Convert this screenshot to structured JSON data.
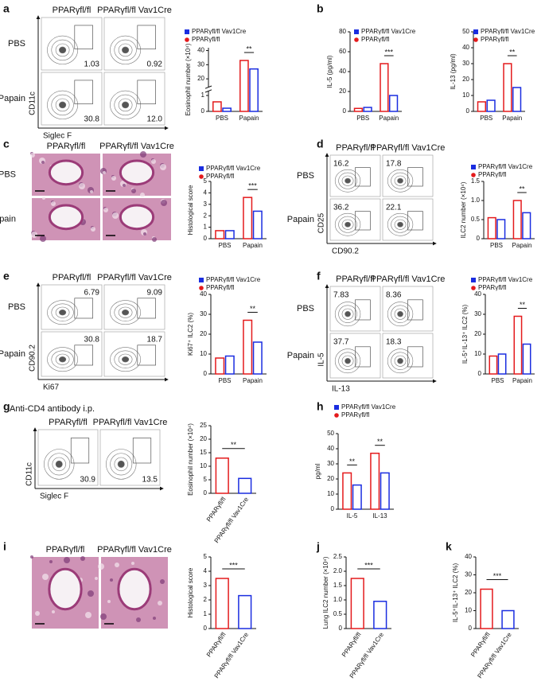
{
  "panel_labels": [
    "a",
    "b",
    "c",
    "d",
    "e",
    "f",
    "g",
    "h",
    "i",
    "j",
    "k"
  ],
  "images": [
    {
      "columns": [
        "PPARγfl/fl",
        "PPARγfl/fl Vav1Cre"
      ],
      "rows": [
        "PBS",
        "Papain"
      ],
      "gates": [
        "1.03",
        "0.92",
        "30.8",
        "12.0"
      ],
      "x_label": "Siglec F",
      "y_label": "CD11c"
    },
    {
      "columns": [
        "PPARγfl/fl",
        "PPARγfl/fl Vav1Cre"
      ],
      "rows": [
        "PBS",
        "Papain"
      ]
    },
    {
      "columns": [
        "PPARγfl/fl",
        "PPARγfl/fl Vav1Cre"
      ],
      "rows": [
        "PBS",
        "Papain"
      ],
      "gates": [
        "16.2",
        "17.8",
        "36.2",
        "22.1"
      ],
      "x_label": "CD90.2",
      "y_label": "CD25"
    },
    {
      "columns": [
        "PPARγfl/fl",
        "PPARγfl/fl Vav1Cre"
      ],
      "rows": [
        "PBS",
        "Papain"
      ],
      "gates": [
        "6.79",
        "9.09",
        "30.8",
        "18.7"
      ],
      "x_label": "Ki67",
      "y_label": "CD90.2"
    },
    {
      "columns": [
        "PPARγfl/fl",
        "PPARγfl/fl Vav1Cre"
      ],
      "rows": [
        "PBS",
        "Papain"
      ],
      "gates": [
        "7.83",
        "8.36",
        "37.7",
        "18.3"
      ],
      "x_label": "IL-13",
      "y_label": "IL-5"
    },
    {
      "title": "Anti-CD4 antibody i.p.",
      "columns": [
        "PPARγfl/fl",
        "PPARγfl/fl Vav1Cre"
      ],
      "gates": [
        "30.9",
        "13.5"
      ],
      "x_label": "Siglec F",
      "y_label": "CD11c"
    },
    {
      "columns": [
        "PPARγfl/fl",
        "PPARγfl/fl Vav1Cre"
      ]
    }
  ],
  "chart_data": [
    {
      "type": "bar",
      "y_label": "Eosinophil number (×10⁴)",
      "categories": [
        "PBS",
        "Papain"
      ],
      "series": [
        {
          "name": "PPARγfl/fl Vav1Cre",
          "color": "#1a2de0",
          "marker": "square",
          "values": [
            0.2,
            27
          ]
        },
        {
          "name": "PPARγfl/fl",
          "color": "#e41a1c",
          "marker": "circle",
          "values": [
            0.6,
            33
          ]
        }
      ],
      "ylim": [
        0,
        42
      ],
      "axis_break": [
        1.2,
        15
      ],
      "yticks": [
        0,
        1,
        20,
        30,
        40
      ],
      "significance": [
        null,
        "**"
      ]
    },
    {
      "type": "bar",
      "y_label": "IL-5 (pg/ml)",
      "categories": [
        "PBS",
        "Papain"
      ],
      "series": [
        {
          "name": "PPARγfl/fl Vav1Cre",
          "color": "#1a2de0",
          "marker": "square",
          "values": [
            4,
            16
          ]
        },
        {
          "name": "PPARγfl/fl",
          "color": "#e41a1c",
          "marker": "circle",
          "values": [
            3,
            48
          ]
        }
      ],
      "ylim": [
        0,
        80
      ],
      "yticks": [
        0,
        20,
        40,
        60,
        80
      ],
      "significance": [
        null,
        "***"
      ]
    },
    {
      "type": "bar",
      "y_label": "IL-13 (pg/ml)",
      "categories": [
        "PBS",
        "Papain"
      ],
      "series": [
        {
          "name": "PPARγfl/fl Vav1Cre",
          "color": "#1a2de0",
          "marker": "square",
          "values": [
            7,
            15
          ]
        },
        {
          "name": "PPARγfl/fl",
          "color": "#e41a1c",
          "marker": "circle",
          "values": [
            6,
            30
          ]
        }
      ],
      "ylim": [
        0,
        50
      ],
      "yticks": [
        0,
        10,
        20,
        30,
        40,
        50
      ],
      "significance": [
        null,
        "**"
      ]
    },
    {
      "type": "bar",
      "y_label": "Histological score",
      "categories": [
        "PBS",
        "Papain"
      ],
      "series": [
        {
          "name": "PPARγfl/fl Vav1Cre",
          "color": "#1a2de0",
          "marker": "square",
          "values": [
            0.7,
            2.4
          ]
        },
        {
          "name": "PPARγfl/fl",
          "color": "#e41a1c",
          "marker": "circle",
          "values": [
            0.7,
            3.6
          ]
        }
      ],
      "ylim": [
        0,
        5
      ],
      "yticks": [
        0,
        1,
        2,
        3,
        4,
        5
      ],
      "significance": [
        null,
        "***"
      ]
    },
    {
      "type": "bar",
      "y_label": "ILC2 number (×10⁴)",
      "categories": [
        "PBS",
        "Papain"
      ],
      "series": [
        {
          "name": "PPARγfl/fl Vav1Cre",
          "color": "#1a2de0",
          "marker": "square",
          "values": [
            0.5,
            0.68
          ]
        },
        {
          "name": "PPARγfl/fl",
          "color": "#e41a1c",
          "marker": "circle",
          "values": [
            0.55,
            1.0
          ]
        }
      ],
      "ylim": [
        0,
        1.5
      ],
      "yticks": [
        0,
        0.5,
        {
          "value": 1,
          "label": "1.0"
        },
        1.5
      ],
      "significance": [
        null,
        "**"
      ]
    },
    {
      "type": "bar",
      "y_label": "Ki67⁺ ILC2 (%)",
      "categories": [
        "PBS",
        "Papain"
      ],
      "series": [
        {
          "name": "PPARγfl/fl Vav1Cre",
          "color": "#1a2de0",
          "marker": "square",
          "values": [
            9,
            16
          ]
        },
        {
          "name": "PPARγfl/fl",
          "color": "#e41a1c",
          "marker": "circle",
          "values": [
            8,
            27
          ]
        }
      ],
      "ylim": [
        0,
        40
      ],
      "yticks": [
        0,
        10,
        20,
        30,
        40
      ],
      "significance": [
        null,
        "**"
      ]
    },
    {
      "type": "bar",
      "y_label": "IL-5⁺IL-13⁺ ILC2 (%)",
      "categories": [
        "PBS",
        "Papain"
      ],
      "series": [
        {
          "name": "PPARγfl/fl Vav1Cre",
          "color": "#1a2de0",
          "marker": "square",
          "values": [
            10,
            15
          ]
        },
        {
          "name": "PPARγfl/fl",
          "color": "#e41a1c",
          "marker": "circle",
          "values": [
            9,
            29
          ]
        }
      ],
      "ylim": [
        0,
        40
      ],
      "yticks": [
        0,
        10,
        20,
        30,
        40
      ],
      "significance": [
        null,
        "**"
      ]
    },
    {
      "type": "bar",
      "y_label": "Eosinophil number (×10⁴)",
      "categories": [
        "PPARγfl/fl",
        "PPARγfl/fl Vav1Cre"
      ],
      "values": [
        13,
        5.5
      ],
      "colors": [
        "#e41a1c",
        "#1a2de0"
      ],
      "ylim": [
        0,
        25
      ],
      "yticks": [
        0,
        5,
        10,
        15,
        20,
        25
      ],
      "significance": "**"
    },
    {
      "type": "bar",
      "y_label": "pg/ml",
      "categories": [
        "IL-5",
        "IL-13"
      ],
      "series": [
        {
          "name": "PPARγfl/fl Vav1Cre",
          "color": "#1a2de0",
          "marker": "square",
          "values": [
            16,
            24
          ]
        },
        {
          "name": "PPARγfl/fl",
          "color": "#e41a1c",
          "marker": "circle",
          "values": [
            24,
            37
          ]
        }
      ],
      "ylim": [
        0,
        50
      ],
      "yticks": [
        0,
        10,
        20,
        30,
        40,
        50
      ],
      "significance": [
        "**",
        "**"
      ]
    },
    {
      "type": "bar",
      "y_label": "Histological score",
      "categories": [
        "PPARγfl/fl",
        "PPARγfl/fl Vav1Cre"
      ],
      "values": [
        3.5,
        2.3
      ],
      "colors": [
        "#e41a1c",
        "#1a2de0"
      ],
      "ylim": [
        0,
        5
      ],
      "yticks": [
        0,
        1,
        2,
        3,
        4,
        5
      ],
      "significance": "***"
    },
    {
      "type": "bar",
      "y_label": "Lung ILC2 number (×10⁴)",
      "categories": [
        "PPARγfl/fl",
        "PPARγfl/fl Vav1Cre"
      ],
      "values": [
        1.75,
        0.95
      ],
      "colors": [
        "#e41a1c",
        "#1a2de0"
      ],
      "ylim": [
        0,
        2.5
      ],
      "yticks": [
        0,
        0.5,
        {
          "value": 1,
          "label": "1.0"
        },
        1.5,
        {
          "value": 2,
          "label": "2.0"
        },
        2.5
      ],
      "significance": "***"
    },
    {
      "type": "bar",
      "y_label": "IL-5⁺IL-13⁺ ILC2 (%)",
      "categories": [
        "PPARγfl/fl",
        "PPARγfl/fl Vav1Cre"
      ],
      "values": [
        22,
        10
      ],
      "colors": [
        "#e41a1c",
        "#1a2de0"
      ],
      "ylim": [
        0,
        40
      ],
      "yticks": [
        0,
        10,
        20,
        30,
        40
      ],
      "significance": "***"
    }
  ]
}
